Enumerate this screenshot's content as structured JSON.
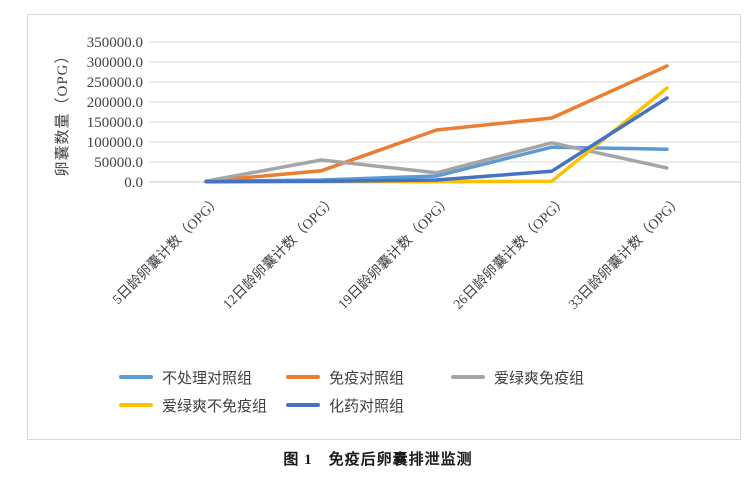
{
  "figure": {
    "caption": "图 1　免疫后卵囊排泄监测"
  },
  "chart_data": {
    "type": "line",
    "title": "图 1　免疫后卵囊排泄监测",
    "ylabel": "卵囊数量（OPG）",
    "xlabel": "",
    "ylim": [
      0,
      350000
    ],
    "ytick_step": 50000,
    "ytick_labels": [
      "0.0",
      "50000.0",
      "100000.0",
      "150000.0",
      "200000.0",
      "250000.0",
      "300000.0",
      "350000.0"
    ],
    "grid": true,
    "legend_position": "bottom",
    "categories": [
      "5日龄卵囊计数（OPG）",
      "12日龄卵囊计数（OPG）",
      "19日龄卵囊计数（OPG）",
      "26日龄卵囊计数（OPG）",
      "33日龄卵囊计数（OPG）"
    ],
    "series": [
      {
        "name": "不处理对照组",
        "color": "#5B9BD5",
        "values": [
          2000,
          5000,
          15000,
          87000,
          82000
        ]
      },
      {
        "name": "免疫对照组",
        "color": "#ED7D31",
        "values": [
          2000,
          28000,
          130000,
          160000,
          290000
        ]
      },
      {
        "name": "爱绿爽免疫组",
        "color": "#A5A5A5",
        "values": [
          2000,
          55000,
          23000,
          98000,
          35000
        ]
      },
      {
        "name": "爱绿爽不免疫组",
        "color": "#FFC000",
        "values": [
          0,
          1000,
          1000,
          2000,
          235000
        ]
      },
      {
        "name": "化药对照组",
        "color": "#4472C4",
        "values": [
          1000,
          2000,
          5000,
          27000,
          210000
        ]
      }
    ]
  }
}
